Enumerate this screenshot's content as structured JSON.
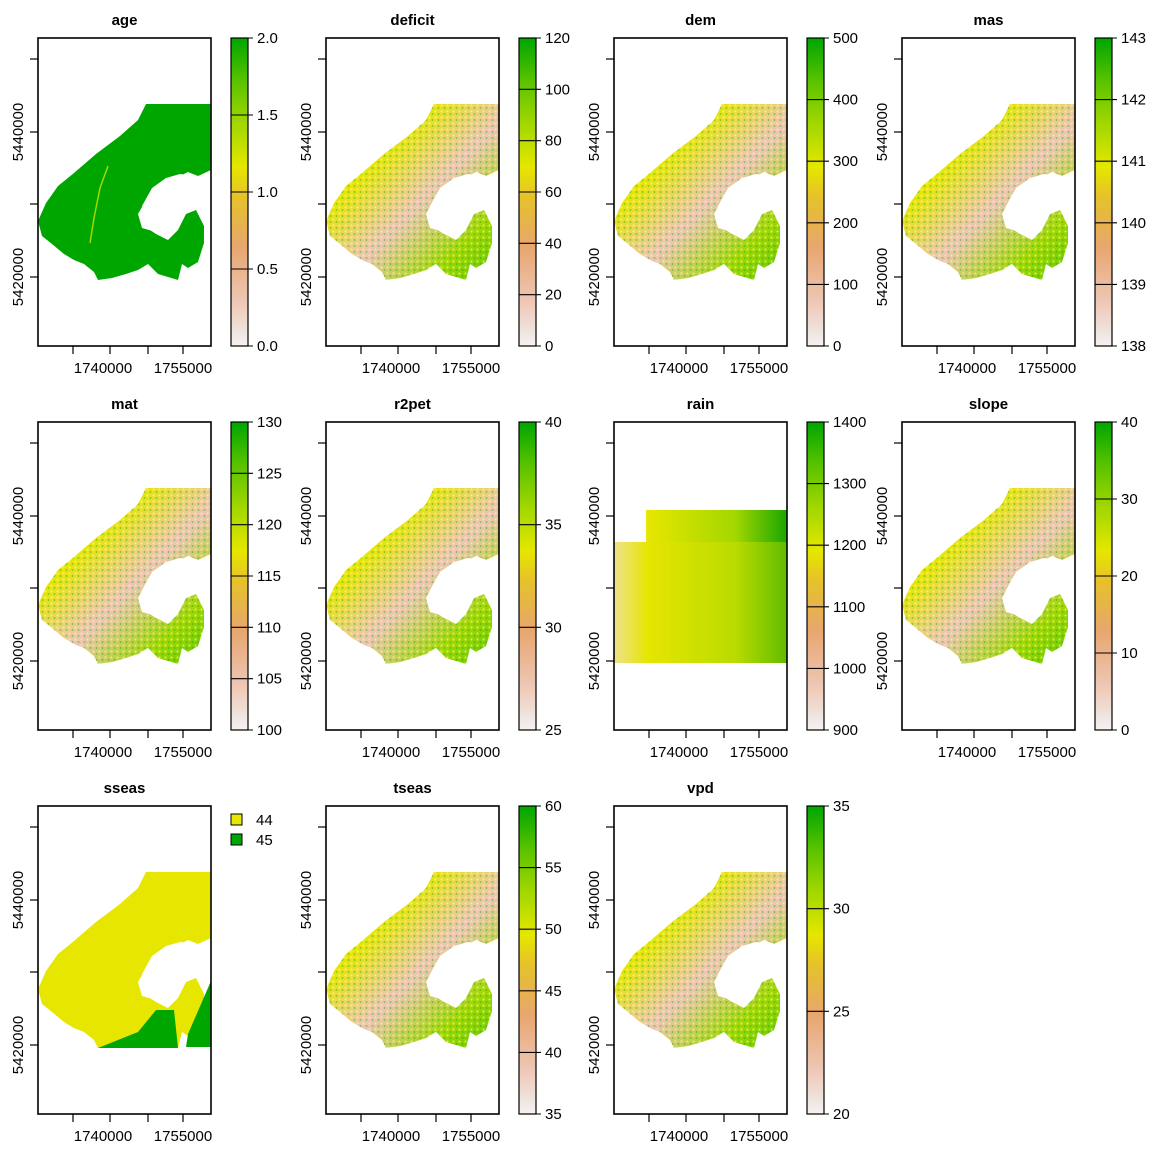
{
  "colors": {
    "ramp": [
      "#f2f2f2",
      "#eec5b2",
      "#e8a670",
      "#e6c12a",
      "#e6e600",
      "#a3d700",
      "#5fc400",
      "#1aa600",
      "#00a600"
    ],
    "class_44": "#e6e600",
    "class_45": "#00a600",
    "frame": "#000000"
  },
  "axes": {
    "x_ticks": [
      "1740000",
      "1755000"
    ],
    "y_ticks": [
      "5440000",
      "5420000"
    ]
  },
  "panels": [
    {
      "title": "age",
      "type": "continuous",
      "legend_ticks": [
        "2.0",
        "1.5",
        "1.0",
        "0.5",
        "0.0"
      ],
      "fill": "age"
    },
    {
      "title": "deficit",
      "type": "continuous",
      "legend_ticks": [
        "120",
        "100",
        "80",
        "60",
        "40",
        "20",
        "0"
      ],
      "fill": "terrain"
    },
    {
      "title": "dem",
      "type": "continuous",
      "legend_ticks": [
        "500",
        "400",
        "300",
        "200",
        "100",
        "0"
      ],
      "fill": "terrain"
    },
    {
      "title": "mas",
      "type": "continuous",
      "legend_ticks": [
        "143",
        "142",
        "141",
        "140",
        "139",
        "138"
      ],
      "fill": "terrain"
    },
    {
      "title": "mat",
      "type": "continuous",
      "legend_ticks": [
        "130",
        "125",
        "120",
        "115",
        "110",
        "105",
        "100"
      ],
      "fill": "terrain"
    },
    {
      "title": "r2pet",
      "type": "continuous",
      "legend_ticks": [
        "40",
        "35",
        "30",
        "25"
      ],
      "fill": "terrain"
    },
    {
      "title": "rain",
      "type": "continuous",
      "legend_ticks": [
        "1400",
        "1300",
        "1200",
        "1100",
        "1000",
        "900"
      ],
      "fill": "rain"
    },
    {
      "title": "slope",
      "type": "continuous",
      "legend_ticks": [
        "40",
        "30",
        "20",
        "10",
        "0"
      ],
      "fill": "terrain"
    },
    {
      "title": "sseas",
      "type": "categorical",
      "legend_items": [
        {
          "label": "44",
          "color": "#e6e600"
        },
        {
          "label": "45",
          "color": "#00a600"
        }
      ],
      "fill": "sseas"
    },
    {
      "title": "tseas",
      "type": "continuous",
      "legend_ticks": [
        "60",
        "55",
        "50",
        "45",
        "40",
        "35"
      ],
      "fill": "terrain"
    },
    {
      "title": "vpd",
      "type": "continuous",
      "legend_ticks": [
        "35",
        "30",
        "25",
        "20"
      ],
      "fill": "terrain"
    }
  ]
}
